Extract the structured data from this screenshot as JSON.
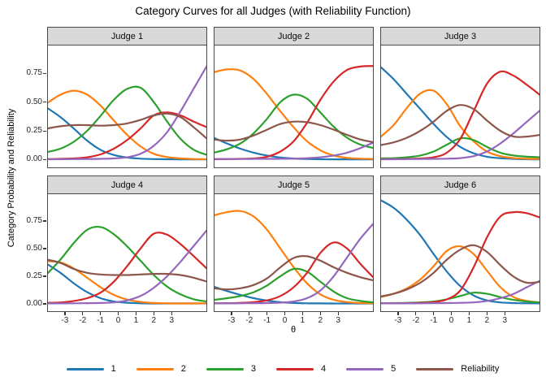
{
  "title": "Category Curves for all Judges (with Reliability Function)",
  "axes": {
    "ylabel": "Category Probability and Reliability",
    "xlabel": "θ",
    "yticks": [
      {
        "label": "0.75",
        "value": 0.75
      },
      {
        "label": "0.50",
        "value": 0.5
      },
      {
        "label": "0.25",
        "value": 0.25
      },
      {
        "label": "0.00",
        "value": 0.0
      }
    ],
    "xticks": [
      {
        "label": "-3",
        "value": -3
      },
      {
        "label": "-2",
        "value": -2
      },
      {
        "label": "-1",
        "value": -1
      },
      {
        "label": "0",
        "value": 0
      },
      {
        "label": "1",
        "value": 1
      },
      {
        "label": "2",
        "value": 2
      },
      {
        "label": "3",
        "value": 3
      }
    ]
  },
  "legend": {
    "items": [
      {
        "label": "1",
        "color": "#1F77B4"
      },
      {
        "label": "2",
        "color": "#FF7F0E"
      },
      {
        "label": "3",
        "color": "#2CA02C"
      },
      {
        "label": "4",
        "color": "#D62728"
      },
      {
        "label": "5",
        "color": "#9467BD"
      },
      {
        "label": "Reliability",
        "color": "#8C564B"
      }
    ]
  },
  "chart_data": {
    "type": "line",
    "xlabel": "θ",
    "ylabel": "Category Probability and Reliability",
    "grid": false,
    "legend_position": "bottom",
    "xlim": [
      -4,
      5
    ],
    "ylim": [
      -0.075,
      1.0
    ],
    "xticks": [
      -3,
      -2,
      -1,
      0,
      1,
      2,
      3
    ],
    "yticks": [
      0,
      0.25,
      0.5,
      0.75
    ],
    "x": [
      -4,
      -3.25,
      -2.5,
      -1.75,
      -1,
      -0.25,
      0.5,
      1.25,
      2,
      2.75,
      3.5,
      4.25,
      5
    ],
    "series_colors": {
      "1": "#1F77B4",
      "2": "#FF7F0E",
      "3": "#2CA02C",
      "4": "#D62728",
      "5": "#9467BD",
      "Reliability": "#8C564B"
    },
    "facets": [
      {
        "label": "Judge 1",
        "series": [
          {
            "name": "1",
            "values": [
              0.45,
              0.37,
              0.27,
              0.165,
              0.085,
              0.04,
              0.018,
              0.008,
              0.004,
              0.003,
              0.002,
              0.002,
              0.002
            ]
          },
          {
            "name": "2",
            "values": [
              0.49,
              0.565,
              0.6,
              0.565,
              0.47,
              0.34,
              0.215,
              0.115,
              0.05,
              0.022,
              0.01,
              0.005,
              0.003
            ]
          },
          {
            "name": "3",
            "values": [
              0.065,
              0.095,
              0.155,
              0.25,
              0.38,
              0.52,
              0.615,
              0.625,
              0.5,
              0.33,
              0.18,
              0.085,
              0.04
            ]
          },
          {
            "name": "4",
            "values": [
              0.004,
              0.006,
              0.01,
              0.02,
              0.045,
              0.095,
              0.17,
              0.27,
              0.385,
              0.41,
              0.385,
              0.33,
              0.28
            ]
          },
          {
            "name": "5",
            "values": [
              0.003,
              0.003,
              0.004,
              0.005,
              0.006,
              0.01,
              0.02,
              0.05,
              0.12,
              0.24,
              0.42,
              0.62,
              0.82
            ]
          },
          {
            "name": "Reliability",
            "values": [
              0.27,
              0.29,
              0.3,
              0.3,
              0.295,
              0.3,
              0.315,
              0.345,
              0.385,
              0.4,
              0.37,
              0.28,
              0.18
            ]
          }
        ]
      },
      {
        "label": "Judge 2",
        "series": [
          {
            "name": "1",
            "values": [
              0.19,
              0.14,
              0.095,
              0.06,
              0.035,
              0.018,
              0.009,
              0.005,
              0.003,
              0.002,
              0.002,
              0.002,
              0.002
            ]
          },
          {
            "name": "2",
            "values": [
              0.76,
              0.785,
              0.775,
              0.7,
              0.57,
              0.42,
              0.28,
              0.16,
              0.08,
              0.035,
              0.015,
              0.008,
              0.005
            ]
          },
          {
            "name": "3",
            "values": [
              0.06,
              0.09,
              0.14,
              0.23,
              0.355,
              0.5,
              0.565,
              0.53,
              0.41,
              0.285,
              0.19,
              0.13,
              0.1
            ]
          },
          {
            "name": "4",
            "values": [
              0.003,
              0.004,
              0.006,
              0.01,
              0.025,
              0.07,
              0.16,
              0.32,
              0.52,
              0.68,
              0.78,
              0.81,
              0.815
            ]
          },
          {
            "name": "5",
            "values": [
              0.005,
              0.005,
              0.005,
              0.006,
              0.006,
              0.007,
              0.008,
              0.012,
              0.02,
              0.035,
              0.06,
              0.1,
              0.15
            ]
          },
          {
            "name": "Reliability",
            "values": [
              0.175,
              0.165,
              0.175,
              0.21,
              0.26,
              0.31,
              0.33,
              0.325,
              0.3,
              0.26,
              0.215,
              0.175,
              0.15
            ]
          }
        ]
      },
      {
        "label": "Judge 3",
        "series": [
          {
            "name": "1",
            "values": [
              0.81,
              0.7,
              0.57,
              0.44,
              0.31,
              0.195,
              0.11,
              0.055,
              0.025,
              0.012,
              0.006,
              0.003,
              0.002
            ]
          },
          {
            "name": "2",
            "values": [
              0.195,
              0.3,
              0.45,
              0.575,
              0.6,
              0.48,
              0.29,
              0.16,
              0.07,
              0.03,
              0.013,
              0.007,
              0.005
            ]
          },
          {
            "name": "3",
            "values": [
              0.01,
              0.012,
              0.02,
              0.035,
              0.07,
              0.13,
              0.185,
              0.17,
              0.11,
              0.06,
              0.035,
              0.025,
              0.02
            ]
          },
          {
            "name": "4",
            "values": [
              0.003,
              0.004,
              0.006,
              0.01,
              0.02,
              0.06,
              0.18,
              0.42,
              0.66,
              0.765,
              0.73,
              0.65,
              0.56
            ]
          },
          {
            "name": "5",
            "values": [
              0.003,
              0.003,
              0.004,
              0.005,
              0.006,
              0.008,
              0.013,
              0.03,
              0.07,
              0.14,
              0.23,
              0.33,
              0.43
            ]
          },
          {
            "name": "Reliability",
            "values": [
              0.125,
              0.15,
              0.19,
              0.25,
              0.33,
              0.425,
              0.475,
              0.44,
              0.34,
              0.25,
              0.2,
              0.2,
              0.215
            ]
          }
        ]
      },
      {
        "label": "Judge 4",
        "series": [
          {
            "name": "1",
            "values": [
              0.36,
              0.28,
              0.185,
              0.105,
              0.05,
              0.02,
              0.009,
              0.004,
              0.002,
              0.002,
              0.002,
              0.002,
              0.002
            ]
          },
          {
            "name": "2",
            "values": [
              0.385,
              0.375,
              0.32,
              0.235,
              0.15,
              0.08,
              0.038,
              0.016,
              0.007,
              0.004,
              0.003,
              0.003,
              0.003
            ]
          },
          {
            "name": "3",
            "values": [
              0.27,
              0.4,
              0.55,
              0.67,
              0.695,
              0.63,
              0.52,
              0.39,
              0.26,
              0.155,
              0.085,
              0.04,
              0.02
            ]
          },
          {
            "name": "4",
            "values": [
              0.008,
              0.012,
              0.025,
              0.05,
              0.1,
              0.2,
              0.34,
              0.5,
              0.635,
              0.625,
              0.54,
              0.43,
              0.315
            ]
          },
          {
            "name": "5",
            "values": [
              0.003,
              0.003,
              0.004,
              0.005,
              0.007,
              0.012,
              0.03,
              0.07,
              0.145,
              0.25,
              0.38,
              0.525,
              0.67
            ]
          },
          {
            "name": "Reliability",
            "values": [
              0.4,
              0.37,
              0.315,
              0.28,
              0.265,
              0.26,
              0.26,
              0.265,
              0.27,
              0.27,
              0.26,
              0.235,
              0.2
            ]
          }
        ]
      },
      {
        "label": "Judge 5",
        "series": [
          {
            "name": "1",
            "values": [
              0.155,
              0.115,
              0.08,
              0.05,
              0.028,
              0.014,
              0.007,
              0.004,
              0.003,
              0.002,
              0.002,
              0.002,
              0.002
            ]
          },
          {
            "name": "2",
            "values": [
              0.8,
              0.83,
              0.84,
              0.79,
              0.67,
              0.5,
              0.33,
              0.185,
              0.085,
              0.035,
              0.015,
              0.007,
              0.004
            ]
          },
          {
            "name": "3",
            "values": [
              0.035,
              0.05,
              0.07,
              0.105,
              0.165,
              0.25,
              0.315,
              0.29,
              0.2,
              0.11,
              0.05,
              0.025,
              0.012
            ]
          },
          {
            "name": "4",
            "values": [
              0.004,
              0.005,
              0.008,
              0.015,
              0.03,
              0.07,
              0.15,
              0.28,
              0.46,
              0.555,
              0.5,
              0.36,
              0.235
            ]
          },
          {
            "name": "5",
            "values": [
              0.003,
              0.003,
              0.004,
              0.005,
              0.006,
              0.01,
              0.02,
              0.05,
              0.12,
              0.25,
              0.42,
              0.59,
              0.73
            ]
          },
          {
            "name": "Reliability",
            "values": [
              0.14,
              0.13,
              0.14,
              0.17,
              0.23,
              0.33,
              0.415,
              0.43,
              0.39,
              0.33,
              0.28,
              0.24,
              0.21
            ]
          }
        ]
      },
      {
        "label": "Judge 6",
        "series": [
          {
            "name": "1",
            "values": [
              0.94,
              0.87,
              0.76,
              0.62,
              0.45,
              0.29,
              0.16,
              0.075,
              0.03,
              0.012,
              0.006,
              0.004,
              0.003
            ]
          },
          {
            "name": "2",
            "values": [
              0.06,
              0.09,
              0.14,
              0.22,
              0.34,
              0.48,
              0.52,
              0.45,
              0.3,
              0.15,
              0.06,
              0.025,
              0.012
            ]
          },
          {
            "name": "3",
            "values": [
              0.005,
              0.006,
              0.008,
              0.012,
              0.02,
              0.04,
              0.07,
              0.1,
              0.09,
              0.06,
              0.035,
              0.02,
              0.012
            ]
          },
          {
            "name": "4",
            "values": [
              0.003,
              0.004,
              0.005,
              0.008,
              0.015,
              0.04,
              0.12,
              0.33,
              0.6,
              0.79,
              0.83,
              0.82,
              0.78
            ]
          },
          {
            "name": "5",
            "values": [
              0.003,
              0.003,
              0.003,
              0.004,
              0.005,
              0.006,
              0.008,
              0.012,
              0.025,
              0.05,
              0.09,
              0.15,
              0.21
            ]
          },
          {
            "name": "Reliability",
            "values": [
              0.065,
              0.09,
              0.13,
              0.19,
              0.28,
              0.4,
              0.49,
              0.53,
              0.47,
              0.35,
              0.245,
              0.19,
              0.2
            ]
          }
        ]
      }
    ]
  }
}
